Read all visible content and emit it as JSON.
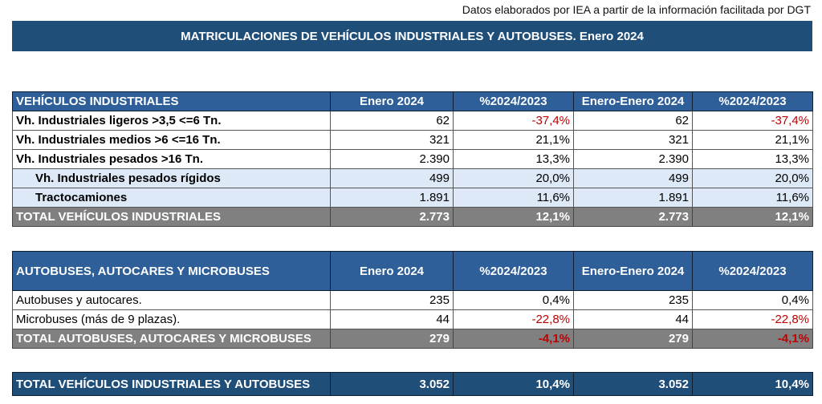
{
  "source_note": "Datos elaborados por IEA a partir de la información facilitada por DGT",
  "title": "MATRICULACIONES DE VEHÍCULOS INDUSTRIALES Y AUTOBUSES.  Enero 2024",
  "columns": [
    "Enero 2024",
    "%2024/2023",
    "Enero-Enero 2024",
    "%2024/2023"
  ],
  "industriales": {
    "header": "VEHÍCULOS INDUSTRIALES",
    "rows": [
      {
        "label": "Vh. Industriales ligeros >3,5 <=6 Tn.",
        "v1": "62",
        "p1": "-37,4%",
        "v2": "62",
        "p2": "-37,4%"
      },
      {
        "label": "Vh. Industriales medios >6  <=16 Tn.",
        "v1": "321",
        "p1": "21,1%",
        "v2": "321",
        "p2": "21,1%"
      },
      {
        "label": "Vh. Industriales  pesados >16 Tn.",
        "v1": "2.390",
        "p1": "13,3%",
        "v2": "2.390",
        "p2": "13,3%"
      },
      {
        "label": "Vh. Industriales pesados rígidos",
        "v1": "499",
        "p1": "20,0%",
        "v2": "499",
        "p2": "20,0%"
      },
      {
        "label": "Tractocamiones",
        "v1": "1.891",
        "p1": "11,6%",
        "v2": "1.891",
        "p2": "11,6%"
      }
    ],
    "total": {
      "label": "TOTAL VEHÍCULOS INDUSTRIALES",
      "v1": "2.773",
      "p1": "12,1%",
      "v2": "2.773",
      "p2": "12,1%"
    }
  },
  "autobuses": {
    "header": "AUTOBUSES, AUTOCARES Y MICROBUSES",
    "rows": [
      {
        "label": "Autobuses y autocares.",
        "v1": "235",
        "p1": "0,4%",
        "v2": "235",
        "p2": "0,4%"
      },
      {
        "label": "Microbuses (más de 9 plazas).",
        "v1": "44",
        "p1": "-22,8%",
        "v2": "44",
        "p2": "-22,8%"
      }
    ],
    "total": {
      "label": "TOTAL AUTOBUSES, AUTOCARES Y MICROBUSES",
      "v1": "279",
      "p1": "-4,1%",
      "v2": "279",
      "p2": "-4,1%"
    }
  },
  "grand_total": {
    "label": "TOTAL VEHÍCULOS INDUSTRIALES Y AUTOBUSES",
    "v1": "3.052",
    "p1": "10,4%",
    "v2": "3.052",
    "p2": "10,4%"
  },
  "colors": {
    "header_dark": "#1f4e79",
    "header": "#2e5f99",
    "subrow": "#dde9f6",
    "total_gray": "#808080",
    "negative": "#c00000"
  }
}
